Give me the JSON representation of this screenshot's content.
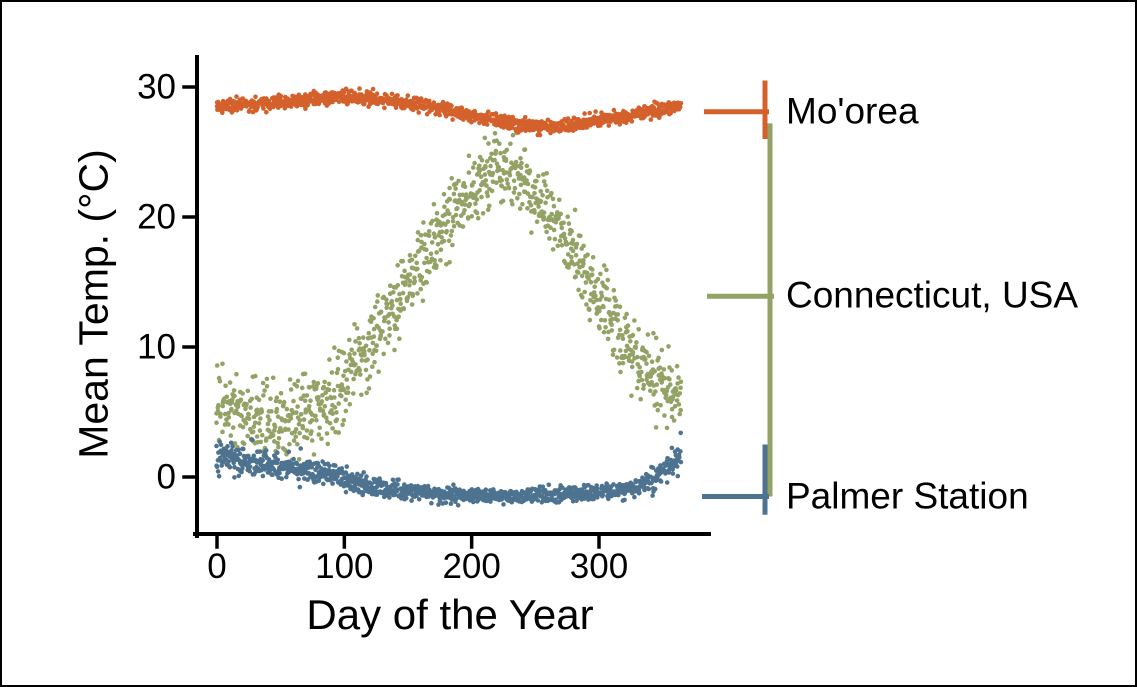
{
  "figure": {
    "background": "#ffffff",
    "border_color": "#000000",
    "axis_color": "#000000"
  },
  "chart_data": {
    "type": "scatter",
    "title": "",
    "xlabel": "Day of the Year",
    "ylabel": "Mean Temp. (°C)",
    "xlim": [
      -16,
      385
    ],
    "ylim": [
      -4.4,
      32.3
    ],
    "xticks": [
      0,
      100,
      200,
      300
    ],
    "yticks": [
      30,
      20,
      10,
      0
    ],
    "grid": false,
    "legend_position": "right-annotated-brackets",
    "marker": "filled-circle",
    "draw_order": [
      1,
      2,
      0
    ],
    "series": [
      {
        "name": "Mo'orea",
        "color": "#d4612c",
        "years": 3,
        "year_offsets": [
          0.22,
          -0.02,
          -0.2
        ],
        "seed": 11,
        "anchors_day_meanC_sdC": [
          [
            0,
            28.5,
            0.18
          ],
          [
            20,
            28.65,
            0.18
          ],
          [
            40,
            28.75,
            0.18
          ],
          [
            60,
            28.9,
            0.2
          ],
          [
            80,
            29.1,
            0.2
          ],
          [
            95,
            29.25,
            0.22
          ],
          [
            110,
            29.2,
            0.22
          ],
          [
            130,
            29.0,
            0.2
          ],
          [
            150,
            28.75,
            0.18
          ],
          [
            170,
            28.45,
            0.18
          ],
          [
            190,
            28.05,
            0.18
          ],
          [
            210,
            27.6,
            0.18
          ],
          [
            230,
            27.25,
            0.18
          ],
          [
            250,
            26.95,
            0.18
          ],
          [
            265,
            26.9,
            0.18
          ],
          [
            280,
            27.1,
            0.18
          ],
          [
            300,
            27.45,
            0.2
          ],
          [
            320,
            27.75,
            0.2
          ],
          [
            340,
            28.1,
            0.2
          ],
          [
            355,
            28.35,
            0.2
          ],
          [
            365,
            28.5,
            0.2
          ]
        ]
      },
      {
        "name": "Connecticut, USA",
        "color": "#93a265",
        "years": 3,
        "year_offsets": [
          0.5,
          0.0,
          -0.5
        ],
        "seed": 23,
        "anchors_day_meanC_sdC": [
          [
            0,
            5.5,
            1.3
          ],
          [
            15,
            4.9,
            1.3
          ],
          [
            30,
            4.4,
            1.4
          ],
          [
            45,
            4.1,
            1.4
          ],
          [
            60,
            4.5,
            1.5
          ],
          [
            75,
            5.1,
            1.5
          ],
          [
            90,
            6.3,
            1.5
          ],
          [
            105,
            8.2,
            1.4
          ],
          [
            120,
            10.3,
            1.3
          ],
          [
            135,
            12.4,
            1.3
          ],
          [
            150,
            14.6,
            1.3
          ],
          [
            165,
            17.0,
            1.25
          ],
          [
            180,
            19.6,
            1.2
          ],
          [
            195,
            21.6,
            1.15
          ],
          [
            210,
            23.2,
            1.1
          ],
          [
            222,
            23.6,
            1.1
          ],
          [
            235,
            23.0,
            1.1
          ],
          [
            250,
            21.6,
            1.15
          ],
          [
            265,
            19.6,
            1.25
          ],
          [
            280,
            17.2,
            1.3
          ],
          [
            295,
            14.6,
            1.35
          ],
          [
            310,
            12.0,
            1.4
          ],
          [
            325,
            9.6,
            1.4
          ],
          [
            340,
            7.8,
            1.4
          ],
          [
            355,
            6.4,
            1.35
          ],
          [
            365,
            5.8,
            1.3
          ]
        ]
      },
      {
        "name": "Palmer Station",
        "color": "#4d7390",
        "years": 3,
        "year_offsets": [
          0.25,
          0.0,
          -0.25
        ],
        "seed": 37,
        "anchors_day_meanC_sdC": [
          [
            0,
            1.5,
            0.55
          ],
          [
            20,
            1.3,
            0.5
          ],
          [
            40,
            1.05,
            0.55
          ],
          [
            60,
            0.75,
            0.5
          ],
          [
            80,
            0.35,
            0.45
          ],
          [
            100,
            -0.15,
            0.4
          ],
          [
            120,
            -0.65,
            0.35
          ],
          [
            140,
            -1.0,
            0.28
          ],
          [
            160,
            -1.2,
            0.24
          ],
          [
            180,
            -1.32,
            0.22
          ],
          [
            200,
            -1.4,
            0.2
          ],
          [
            220,
            -1.45,
            0.2
          ],
          [
            240,
            -1.45,
            0.2
          ],
          [
            260,
            -1.4,
            0.2
          ],
          [
            280,
            -1.32,
            0.22
          ],
          [
            300,
            -1.2,
            0.25
          ],
          [
            320,
            -0.95,
            0.3
          ],
          [
            335,
            -0.55,
            0.35
          ],
          [
            350,
            0.4,
            0.45
          ],
          [
            365,
            1.9,
            0.5
          ]
        ]
      }
    ],
    "annotations": [
      {
        "label": "Mo'orea",
        "color": "#d4612c",
        "range_c": [
          26.0,
          30.5
        ],
        "pointer_c": 28.1
      },
      {
        "label": "Connecticut, USA",
        "color": "#93a265",
        "range_c": [
          -1.5,
          27.2
        ],
        "pointer_c": 13.9
      },
      {
        "label": "Palmer Station",
        "color": "#4d7390",
        "range_c": [
          -2.9,
          2.5
        ],
        "pointer_c": -1.5
      }
    ]
  }
}
